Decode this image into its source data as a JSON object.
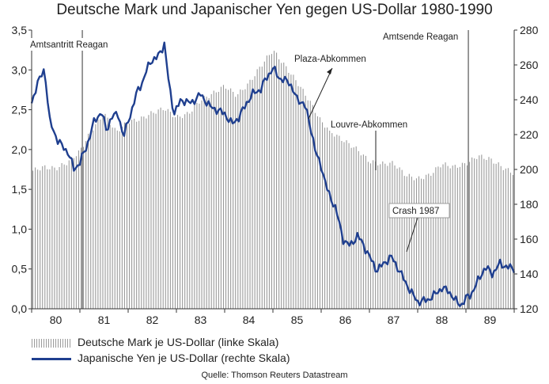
{
  "title": "Deutsche Mark und Japanischer Yen gegen US-Dollar 1980-1990",
  "source": "Quelle: Thomson Reuters Datastream",
  "legend": {
    "bars": "Deutsche Mark je US-Dollar (linke Skala)",
    "line": "Japanische Yen je US-Dollar (rechte Skala)"
  },
  "colors": {
    "bars": "#9a9a9a",
    "line": "#1f3f8f",
    "axis": "#333333"
  },
  "chart_data": {
    "type": "bar+line",
    "title": "Deutsche Mark und Japanischer Yen gegen US-Dollar 1980-1990",
    "categories": [
      "80",
      "81",
      "82",
      "83",
      "84",
      "85",
      "86",
      "87",
      "88",
      "89"
    ],
    "left_axis": {
      "ylim": [
        0,
        3.5
      ],
      "ticks": [
        "0,0",
        "0,5",
        "1,0",
        "1,5",
        "2,0",
        "2,5",
        "3,0",
        "3,5"
      ]
    },
    "right_axis": {
      "ylim": [
        120,
        280
      ],
      "ticks": [
        "120",
        "140",
        "160",
        "180",
        "200",
        "220",
        "240",
        "260",
        "280"
      ]
    },
    "grid": false,
    "series": [
      {
        "name": "Deutsche Mark je US-Dollar (linke Skala)",
        "type": "bar",
        "axis": "left",
        "points": [
          [
            1980.0,
            1.73
          ],
          [
            1980.25,
            1.78
          ],
          [
            1980.5,
            1.76
          ],
          [
            1980.75,
            1.84
          ],
          [
            1981.0,
            1.98
          ],
          [
            1981.25,
            2.25
          ],
          [
            1981.5,
            2.45
          ],
          [
            1981.75,
            2.22
          ],
          [
            1982.0,
            2.35
          ],
          [
            1982.25,
            2.38
          ],
          [
            1982.5,
            2.46
          ],
          [
            1982.75,
            2.52
          ],
          [
            1983.0,
            2.4
          ],
          [
            1983.25,
            2.45
          ],
          [
            1983.5,
            2.62
          ],
          [
            1983.75,
            2.7
          ],
          [
            1984.0,
            2.8
          ],
          [
            1984.25,
            2.68
          ],
          [
            1984.5,
            2.83
          ],
          [
            1984.75,
            3.05
          ],
          [
            1985.0,
            3.25
          ],
          [
            1985.25,
            3.05
          ],
          [
            1985.5,
            2.85
          ],
          [
            1985.75,
            2.62
          ],
          [
            1986.0,
            2.35
          ],
          [
            1986.25,
            2.2
          ],
          [
            1986.5,
            2.1
          ],
          [
            1986.75,
            2.0
          ],
          [
            1987.0,
            1.85
          ],
          [
            1987.25,
            1.82
          ],
          [
            1987.5,
            1.83
          ],
          [
            1987.75,
            1.68
          ],
          [
            1988.0,
            1.63
          ],
          [
            1988.25,
            1.68
          ],
          [
            1988.5,
            1.82
          ],
          [
            1988.75,
            1.78
          ],
          [
            1989.0,
            1.82
          ],
          [
            1989.25,
            1.92
          ],
          [
            1989.5,
            1.88
          ],
          [
            1989.75,
            1.78
          ],
          [
            1989.99,
            1.7
          ]
        ]
      },
      {
        "name": "Japanische Yen je US-Dollar (rechte Skala)",
        "type": "line",
        "axis": "right",
        "points": [
          [
            1980.0,
            238
          ],
          [
            1980.1,
            248
          ],
          [
            1980.27,
            258
          ],
          [
            1980.37,
            228
          ],
          [
            1980.55,
            216
          ],
          [
            1980.75,
            210
          ],
          [
            1980.88,
            200
          ],
          [
            1981.0,
            204
          ],
          [
            1981.15,
            214
          ],
          [
            1981.3,
            228
          ],
          [
            1981.45,
            233
          ],
          [
            1981.55,
            222
          ],
          [
            1981.65,
            230
          ],
          [
            1981.8,
            232
          ],
          [
            1981.9,
            218
          ],
          [
            1982.0,
            228
          ],
          [
            1982.1,
            236
          ],
          [
            1982.2,
            246
          ],
          [
            1982.3,
            250
          ],
          [
            1982.45,
            262
          ],
          [
            1982.6,
            264
          ],
          [
            1982.75,
            272
          ],
          [
            1982.85,
            248
          ],
          [
            1982.95,
            232
          ],
          [
            1983.1,
            240
          ],
          [
            1983.3,
            238
          ],
          [
            1983.5,
            243
          ],
          [
            1983.7,
            236
          ],
          [
            1983.85,
            234
          ],
          [
            1984.0,
            232
          ],
          [
            1984.15,
            226
          ],
          [
            1984.3,
            230
          ],
          [
            1984.45,
            238
          ],
          [
            1984.6,
            244
          ],
          [
            1984.75,
            246
          ],
          [
            1984.85,
            252
          ],
          [
            1985.0,
            258
          ],
          [
            1985.15,
            252
          ],
          [
            1985.35,
            250
          ],
          [
            1985.5,
            240
          ],
          [
            1985.65,
            238
          ],
          [
            1985.8,
            222
          ],
          [
            1985.9,
            208
          ],
          [
            1986.0,
            202
          ],
          [
            1986.15,
            186
          ],
          [
            1986.3,
            178
          ],
          [
            1986.45,
            160
          ],
          [
            1986.6,
            156
          ],
          [
            1986.75,
            162
          ],
          [
            1986.85,
            158
          ],
          [
            1987.0,
            150
          ],
          [
            1987.15,
            142
          ],
          [
            1987.3,
            146
          ],
          [
            1987.45,
            150
          ],
          [
            1987.6,
            143
          ],
          [
            1987.75,
            135
          ],
          [
            1987.9,
            128
          ],
          [
            1988.0,
            124
          ],
          [
            1988.2,
            125
          ],
          [
            1988.35,
            128
          ],
          [
            1988.5,
            132
          ],
          [
            1988.65,
            130
          ],
          [
            1988.8,
            124
          ],
          [
            1988.9,
            122
          ],
          [
            1989.0,
            126
          ],
          [
            1989.1,
            128
          ],
          [
            1989.25,
            136
          ],
          [
            1989.4,
            144
          ],
          [
            1989.55,
            140
          ],
          [
            1989.7,
            146
          ],
          [
            1989.85,
            144
          ],
          [
            1989.99,
            143
          ]
        ]
      }
    ],
    "annotations": [
      {
        "text": "Amtsantritt Reagan",
        "x": 1981.05,
        "type": "vline"
      },
      {
        "text": "Amtsende Reagan",
        "x": 1989.05,
        "type": "vline"
      },
      {
        "text": "Plaza-Abkommen",
        "x": 1985.7,
        "type": "arrow"
      },
      {
        "text": "Louvre-Abkommen",
        "x": 1987.15,
        "type": "leader"
      },
      {
        "text": "Crash 1987",
        "x": 1987.8,
        "type": "leader"
      }
    ]
  }
}
